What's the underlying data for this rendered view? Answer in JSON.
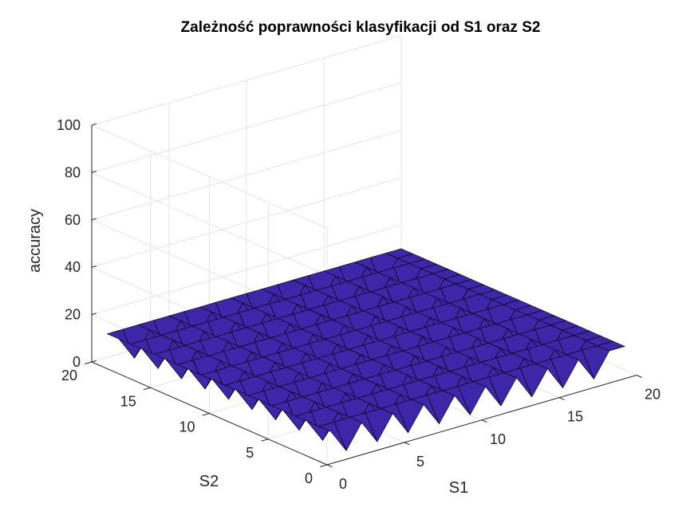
{
  "chart_data": {
    "type": "surface",
    "title": "Zależność poprawności klasyfikacji od S1 oraz S2",
    "xlabel": "S1",
    "ylabel": "S2",
    "zlabel": "accuracy",
    "xlim": [
      0,
      20
    ],
    "ylim": [
      0,
      20
    ],
    "zlim": [
      0,
      100
    ],
    "xticks": [
      "0",
      "5",
      "10",
      "15",
      "20"
    ],
    "yticks": [
      "0",
      "5",
      "10",
      "15",
      "20"
    ],
    "zticks": [
      "0",
      "20",
      "40",
      "60",
      "80",
      "100"
    ],
    "grid": true,
    "colormap": [
      "#3e26a8",
      "#2e87f7",
      "#1fb8b3",
      "#7fcd4f",
      "#fbc234",
      "#f9fb0e"
    ],
    "x": [
      1,
      2,
      3,
      4,
      5,
      6,
      7,
      8,
      9,
      10,
      11,
      12,
      13,
      14,
      15,
      16,
      17,
      18,
      19,
      20
    ],
    "y": [
      1,
      2,
      3,
      4,
      5,
      6,
      7,
      8,
      9,
      10,
      11,
      12,
      13,
      14,
      15,
      16,
      17,
      18,
      19,
      20
    ],
    "z": [
      [
        10,
        0,
        10,
        0,
        10,
        0,
        10,
        0,
        10,
        0,
        10,
        0,
        10,
        0,
        10,
        0,
        10,
        0,
        10,
        10
      ],
      [
        10,
        10,
        10,
        10,
        10,
        10,
        10,
        10,
        10,
        10,
        10,
        10,
        10,
        10,
        10,
        10,
        10,
        10,
        10,
        10
      ],
      [
        10,
        0,
        10,
        0,
        10,
        0,
        10,
        0,
        10,
        0,
        10,
        0,
        10,
        0,
        10,
        0,
        10,
        0,
        10,
        10
      ],
      [
        10,
        10,
        10,
        10,
        10,
        10,
        10,
        10,
        10,
        10,
        10,
        10,
        10,
        10,
        10,
        10,
        10,
        10,
        10,
        10
      ],
      [
        10,
        0,
        10,
        0,
        10,
        0,
        10,
        0,
        10,
        0,
        10,
        0,
        10,
        0,
        10,
        0,
        10,
        0,
        10,
        10
      ],
      [
        10,
        10,
        10,
        10,
        10,
        10,
        10,
        10,
        10,
        10,
        10,
        10,
        10,
        10,
        10,
        10,
        10,
        10,
        10,
        10
      ],
      [
        10,
        0,
        10,
        0,
        10,
        0,
        10,
        0,
        10,
        0,
        10,
        0,
        10,
        0,
        10,
        0,
        10,
        0,
        10,
        10
      ],
      [
        10,
        10,
        10,
        10,
        10,
        10,
        10,
        10,
        10,
        10,
        10,
        10,
        10,
        10,
        10,
        10,
        10,
        10,
        10,
        10
      ],
      [
        10,
        0,
        10,
        0,
        10,
        0,
        10,
        0,
        10,
        0,
        10,
        0,
        10,
        0,
        10,
        0,
        10,
        0,
        10,
        10
      ],
      [
        10,
        10,
        10,
        10,
        10,
        10,
        10,
        10,
        10,
        10,
        10,
        10,
        10,
        10,
        10,
        10,
        10,
        10,
        10,
        10
      ],
      [
        10,
        0,
        10,
        0,
        10,
        0,
        10,
        0,
        10,
        0,
        10,
        0,
        10,
        0,
        10,
        0,
        10,
        0,
        10,
        10
      ],
      [
        10,
        10,
        10,
        10,
        10,
        10,
        10,
        10,
        10,
        10,
        10,
        10,
        10,
        10,
        10,
        10,
        10,
        10,
        10,
        10
      ],
      [
        10,
        0,
        10,
        0,
        10,
        0,
        10,
        0,
        10,
        0,
        10,
        0,
        10,
        0,
        10,
        0,
        10,
        0,
        10,
        10
      ],
      [
        10,
        10,
        10,
        10,
        10,
        10,
        10,
        10,
        10,
        10,
        10,
        10,
        10,
        10,
        10,
        10,
        10,
        10,
        10,
        10
      ],
      [
        10,
        0,
        10,
        0,
        10,
        0,
        10,
        0,
        10,
        0,
        10,
        0,
        10,
        0,
        10,
        0,
        10,
        0,
        10,
        10
      ],
      [
        10,
        10,
        10,
        10,
        10,
        10,
        10,
        10,
        10,
        10,
        10,
        10,
        10,
        10,
        10,
        10,
        10,
        10,
        10,
        10
      ],
      [
        10,
        0,
        10,
        0,
        10,
        0,
        10,
        0,
        10,
        0,
        10,
        0,
        10,
        0,
        10,
        0,
        10,
        0,
        10,
        10
      ],
      [
        10,
        10,
        10,
        10,
        10,
        10,
        10,
        10,
        10,
        10,
        10,
        10,
        10,
        10,
        10,
        10,
        10,
        10,
        10,
        10
      ],
      [
        10,
        0,
        10,
        0,
        10,
        0,
        10,
        0,
        10,
        0,
        10,
        0,
        10,
        0,
        10,
        0,
        10,
        0,
        10,
        10
      ],
      [
        10,
        10,
        10,
        10,
        10,
        10,
        10,
        10,
        10,
        10,
        10,
        10,
        10,
        10,
        10,
        10,
        10,
        10,
        10,
        10
      ]
    ]
  }
}
